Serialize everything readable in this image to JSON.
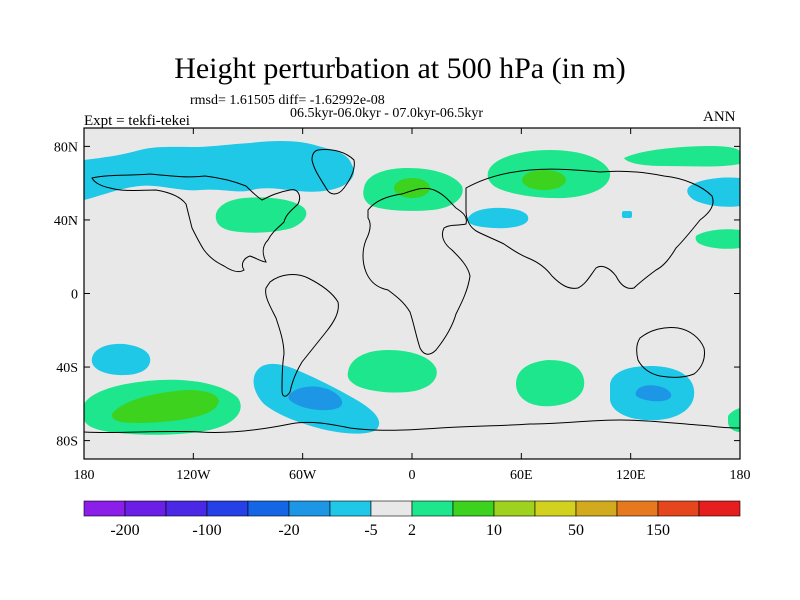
{
  "title": "Height perturbation at 500 hPa (in m)",
  "stats_line": "rmsd= 1.61505 diff= -1.62992e-08",
  "subtitle": "06.5kyr-06.0kyr - 07.0kyr-06.5kyr",
  "experiment": "Expt = tekfi-tekei",
  "season": "ANN",
  "map": {
    "projection": "cylindrical-equidistant",
    "lon_range": [
      -180,
      180
    ],
    "lat_range": [
      -90,
      90
    ],
    "background_color": "#e8e8e8",
    "coastline_color": "#000000"
  },
  "y_axis_labels": [
    {
      "lat": 80,
      "label": "80N"
    },
    {
      "lat": 40,
      "label": "40N"
    },
    {
      "lat": 0,
      "label": "0"
    },
    {
      "lat": -40,
      "label": "40S"
    },
    {
      "lat": -80,
      "label": "80S"
    }
  ],
  "x_axis_labels": [
    {
      "lon": -180,
      "label": "180"
    },
    {
      "lon": -120,
      "label": "120W"
    },
    {
      "lon": -60,
      "label": "60W"
    },
    {
      "lon": 0,
      "label": "0"
    },
    {
      "lon": 60,
      "label": "60E"
    },
    {
      "lon": 120,
      "label": "120E"
    },
    {
      "lon": 180,
      "label": "180"
    }
  ],
  "colorbar": {
    "colors": [
      "#8c1eea",
      "#6a1ee6",
      "#4b28e6",
      "#2440e6",
      "#1466e6",
      "#1e96e6",
      "#1ec8e6",
      "#e8e8e8",
      "#1ee68c",
      "#3cd21e",
      "#9ed21e",
      "#d2d21e",
      "#d2aa1e",
      "#e6781e",
      "#e6461e",
      "#e61e1e"
    ],
    "tick_labels": [
      {
        "index": 1,
        "label": "-200"
      },
      {
        "index": 3,
        "label": "-100"
      },
      {
        "index": 5,
        "label": "-20"
      },
      {
        "index": 7,
        "label": "-5"
      },
      {
        "index": 8,
        "label": "2"
      },
      {
        "index": 10,
        "label": "10"
      },
      {
        "index": 12,
        "label": "50"
      },
      {
        "index": 14,
        "label": "150"
      }
    ]
  },
  "anomaly_regions": [
    {
      "name": "n-canada-low",
      "sign": "negative",
      "level": "-5",
      "color": "#1ec8e6"
    },
    {
      "name": "e-usa-high",
      "sign": "positive",
      "level": "2",
      "color": "#1ee68c"
    },
    {
      "name": "europe-high",
      "sign": "positive",
      "level": "2",
      "color": "#1ee68c"
    },
    {
      "name": "europe-high-core",
      "sign": "positive",
      "level": "10",
      "color": "#3cd21e"
    },
    {
      "name": "siberia-high",
      "sign": "positive",
      "level": "2",
      "color": "#1ee68c"
    },
    {
      "name": "siberia-high-core",
      "sign": "positive",
      "level": "10",
      "color": "#3cd21e"
    },
    {
      "name": "e-siberia-high",
      "sign": "positive",
      "level": "2",
      "color": "#1ee68c"
    },
    {
      "name": "n-pacific-low",
      "sign": "negative",
      "level": "-5",
      "color": "#1ec8e6"
    },
    {
      "name": "mideast-low",
      "sign": "negative",
      "level": "-5",
      "color": "#1ec8e6"
    },
    {
      "name": "s-pacific-low",
      "sign": "negative",
      "level": "-5",
      "color": "#1ec8e6"
    },
    {
      "name": "s-pacific-high",
      "sign": "positive",
      "level": "2",
      "color": "#1ee68c"
    },
    {
      "name": "s-pacific-high-core",
      "sign": "positive",
      "level": "10",
      "color": "#3cd21e"
    },
    {
      "name": "s-america-low",
      "sign": "negative",
      "level": "-5",
      "color": "#1ec8e6"
    },
    {
      "name": "s-america-low-core",
      "sign": "negative",
      "level": "-20",
      "color": "#1e96e6"
    },
    {
      "name": "s-atlantic-high",
      "sign": "positive",
      "level": "2",
      "color": "#1ee68c"
    },
    {
      "name": "indian-ocean-high",
      "sign": "positive",
      "level": "2",
      "color": "#1ee68c"
    },
    {
      "name": "australia-s-low",
      "sign": "negative",
      "level": "-5",
      "color": "#1ec8e6"
    },
    {
      "name": "australia-s-low-core",
      "sign": "negative",
      "level": "-20",
      "color": "#1e96e6"
    }
  ]
}
